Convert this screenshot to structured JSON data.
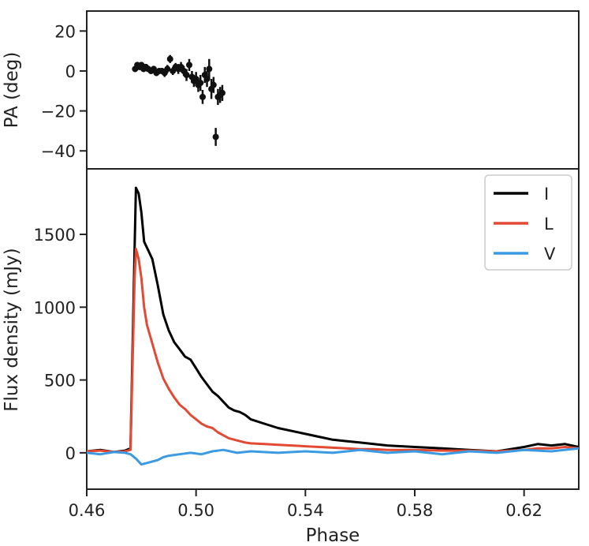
{
  "chart_data": [
    {
      "panel": "top",
      "type": "scatter",
      "title": "",
      "xlabel": "",
      "ylabel": "PA (deg)",
      "xlim": [
        0.46,
        0.64
      ],
      "ylim": [
        -49,
        30
      ],
      "yticks": [
        20,
        0,
        -20,
        -40
      ],
      "ytick_labels": [
        "20",
        "0",
        "−20",
        "−40"
      ],
      "color": "#111111",
      "points": [
        {
          "x": 0.4777,
          "y": 1,
          "err": 1.5
        },
        {
          "x": 0.4785,
          "y": 3,
          "err": 1.5
        },
        {
          "x": 0.4793,
          "y": 2,
          "err": 1.5
        },
        {
          "x": 0.48,
          "y": 3,
          "err": 1.5
        },
        {
          "x": 0.4808,
          "y": 1,
          "err": 1.5
        },
        {
          "x": 0.4816,
          "y": 2,
          "err": 1.5
        },
        {
          "x": 0.4825,
          "y": 1,
          "err": 1.5
        },
        {
          "x": 0.4835,
          "y": 0,
          "err": 1.5
        },
        {
          "x": 0.4845,
          "y": 1,
          "err": 1.5
        },
        {
          "x": 0.4855,
          "y": -1,
          "err": 1.5
        },
        {
          "x": 0.4865,
          "y": 0,
          "err": 1.5
        },
        {
          "x": 0.4875,
          "y": 0,
          "err": 1.5
        },
        {
          "x": 0.4885,
          "y": -1,
          "err": 2
        },
        {
          "x": 0.4895,
          "y": 1,
          "err": 2
        },
        {
          "x": 0.4905,
          "y": 6,
          "err": 2
        },
        {
          "x": 0.4915,
          "y": 0,
          "err": 2
        },
        {
          "x": 0.4925,
          "y": 2,
          "err": 2
        },
        {
          "x": 0.4935,
          "y": 1,
          "err": 2.5
        },
        {
          "x": 0.4945,
          "y": 2,
          "err": 2.5
        },
        {
          "x": 0.4955,
          "y": 0,
          "err": 2.5
        },
        {
          "x": 0.4965,
          "y": -2,
          "err": 3
        },
        {
          "x": 0.4975,
          "y": 3,
          "err": 3
        },
        {
          "x": 0.4985,
          "y": -3,
          "err": 3
        },
        {
          "x": 0.4992,
          "y": -5,
          "err": 3
        },
        {
          "x": 0.5,
          "y": -4,
          "err": 3.5
        },
        {
          "x": 0.5008,
          "y": -7,
          "err": 3.5
        },
        {
          "x": 0.5016,
          "y": -6,
          "err": 4
        },
        {
          "x": 0.5024,
          "y": -13,
          "err": 3.5
        },
        {
          "x": 0.5032,
          "y": -2,
          "err": 4
        },
        {
          "x": 0.504,
          "y": -4,
          "err": 4
        },
        {
          "x": 0.5048,
          "y": 1,
          "err": 5
        },
        {
          "x": 0.5056,
          "y": -9,
          "err": 5
        },
        {
          "x": 0.5064,
          "y": -7,
          "err": 4
        },
        {
          "x": 0.5072,
          "y": -33,
          "err": 4.5
        },
        {
          "x": 0.508,
          "y": -13,
          "err": 4
        },
        {
          "x": 0.5088,
          "y": -12,
          "err": 4
        },
        {
          "x": 0.5096,
          "y": -11,
          "err": 4
        }
      ]
    },
    {
      "panel": "bottom",
      "type": "line",
      "title": "",
      "xlabel": "Phase",
      "ylabel": "Flux density (mJy)",
      "xlim": [
        0.46,
        0.64
      ],
      "ylim": [
        -250,
        1950
      ],
      "xticks": [
        0.46,
        0.5,
        0.54,
        0.58,
        0.62
      ],
      "xtick_labels": [
        "0.46",
        "0.50",
        "0.54",
        "0.58",
        "0.62"
      ],
      "yticks": [
        0,
        500,
        1000,
        1500
      ],
      "ytick_labels": [
        "0",
        "500",
        "1000",
        "1500"
      ],
      "legend_position": "top-right",
      "series": [
        {
          "name": "I",
          "color": "#000000",
          "x": [
            0.46,
            0.465,
            0.47,
            0.474,
            0.476,
            0.4775,
            0.478,
            0.479,
            0.48,
            0.481,
            0.482,
            0.484,
            0.486,
            0.488,
            0.49,
            0.492,
            0.494,
            0.496,
            0.498,
            0.5,
            0.502,
            0.504,
            0.506,
            0.508,
            0.51,
            0.512,
            0.514,
            0.516,
            0.518,
            0.52,
            0.525,
            0.53,
            0.535,
            0.54,
            0.545,
            0.55,
            0.555,
            0.56,
            0.565,
            0.57,
            0.58,
            0.59,
            0.6,
            0.61,
            0.62,
            0.625,
            0.63,
            0.635,
            0.64
          ],
          "y": [
            10,
            20,
            5,
            15,
            30,
            1400,
            1820,
            1780,
            1650,
            1450,
            1410,
            1330,
            1150,
            950,
            840,
            760,
            710,
            660,
            640,
            580,
            520,
            470,
            420,
            390,
            350,
            310,
            290,
            280,
            260,
            230,
            200,
            170,
            150,
            130,
            110,
            90,
            80,
            70,
            60,
            50,
            40,
            30,
            20,
            10,
            40,
            60,
            50,
            60,
            40
          ]
        },
        {
          "name": "L",
          "color": "#e24a33",
          "x": [
            0.46,
            0.465,
            0.47,
            0.474,
            0.476,
            0.4775,
            0.478,
            0.479,
            0.48,
            0.481,
            0.482,
            0.484,
            0.486,
            0.488,
            0.49,
            0.492,
            0.494,
            0.496,
            0.498,
            0.5,
            0.502,
            0.504,
            0.506,
            0.508,
            0.51,
            0.512,
            0.514,
            0.516,
            0.518,
            0.52,
            0.525,
            0.53,
            0.535,
            0.54,
            0.545,
            0.55,
            0.555,
            0.56,
            0.565,
            0.57,
            0.58,
            0.59,
            0.6,
            0.61,
            0.62,
            0.625,
            0.63,
            0.635,
            0.64
          ],
          "y": [
            10,
            15,
            5,
            10,
            20,
            1200,
            1400,
            1330,
            1200,
            1000,
            880,
            750,
            620,
            510,
            440,
            380,
            330,
            300,
            260,
            230,
            200,
            180,
            170,
            140,
            120,
            100,
            90,
            80,
            70,
            65,
            60,
            55,
            50,
            45,
            40,
            35,
            30,
            25,
            25,
            20,
            20,
            15,
            15,
            10,
            20,
            30,
            30,
            40,
            30
          ]
        },
        {
          "name": "V",
          "color": "#3b9ae1",
          "x": [
            0.46,
            0.465,
            0.47,
            0.474,
            0.476,
            0.478,
            0.48,
            0.482,
            0.484,
            0.486,
            0.488,
            0.49,
            0.494,
            0.498,
            0.502,
            0.506,
            0.51,
            0.515,
            0.52,
            0.53,
            0.54,
            0.55,
            0.56,
            0.57,
            0.58,
            0.59,
            0.6,
            0.61,
            0.62,
            0.63,
            0.64
          ],
          "y": [
            0,
            -10,
            5,
            0,
            -10,
            -40,
            -80,
            -70,
            -60,
            -50,
            -30,
            -20,
            -10,
            0,
            -10,
            10,
            20,
            0,
            10,
            0,
            10,
            0,
            20,
            0,
            10,
            -10,
            10,
            0,
            20,
            10,
            30
          ]
        }
      ]
    }
  ]
}
